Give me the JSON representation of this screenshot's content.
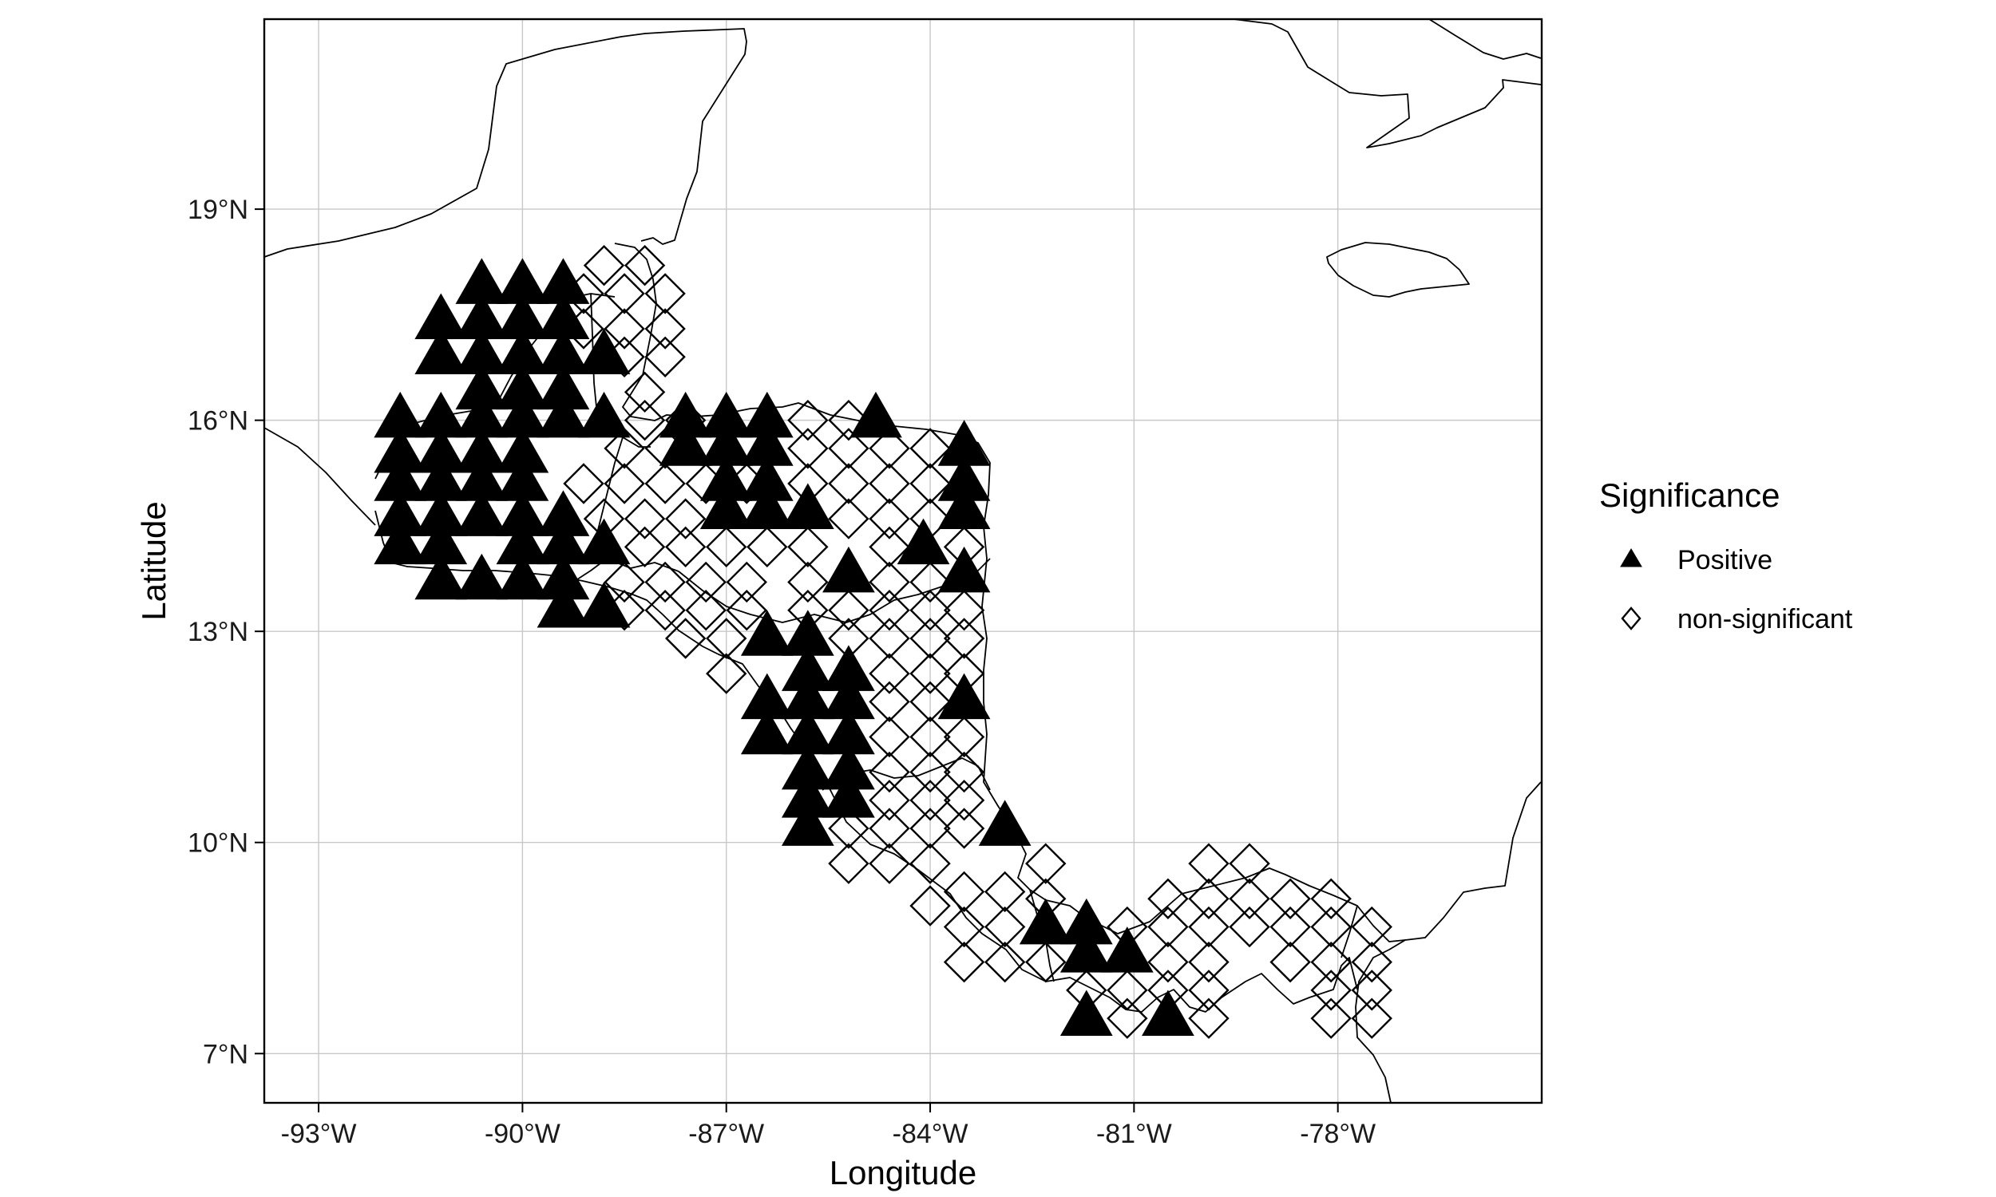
{
  "chart_data": {
    "type": "scatter",
    "title": "",
    "xlabel": "Longitude",
    "ylabel": "Latitude",
    "xlim": [
      -93.8,
      -75.0
    ],
    "ylim": [
      6.3,
      21.7
    ],
    "x_ticks": [
      {
        "value": -93,
        "label": "-93°W"
      },
      {
        "value": -90,
        "label": "-90°W"
      },
      {
        "value": -87,
        "label": "-87°W"
      },
      {
        "value": -84,
        "label": "-84°W"
      },
      {
        "value": -81,
        "label": "-81°W"
      },
      {
        "value": -78,
        "label": "-78°W"
      }
    ],
    "y_ticks": [
      {
        "value": 7,
        "label": "7°N"
      },
      {
        "value": 10,
        "label": "10°N"
      },
      {
        "value": 13,
        "label": "13°N"
      },
      {
        "value": 16,
        "label": "16°N"
      },
      {
        "value": 19,
        "label": "19°N"
      }
    ],
    "grid": true,
    "legend": {
      "title": "Significance",
      "position": "right",
      "entries": [
        {
          "name": "Positive",
          "shape": "triangle-filled"
        },
        {
          "name": "non-significant",
          "shape": "diamond-open"
        }
      ]
    },
    "series": [
      {
        "name": "Positive",
        "shape": "triangle-filled",
        "points": [
          [
            -91.2,
            17.4
          ],
          [
            -91.2,
            16.9
          ],
          [
            -90.6,
            17.9
          ],
          [
            -90.6,
            17.4
          ],
          [
            -90.6,
            16.9
          ],
          [
            -90.6,
            16.4
          ],
          [
            -90.0,
            17.9
          ],
          [
            -90.0,
            17.4
          ],
          [
            -90.0,
            16.9
          ],
          [
            -90.0,
            16.4
          ],
          [
            -89.4,
            17.9
          ],
          [
            -89.4,
            17.4
          ],
          [
            -89.4,
            16.9
          ],
          [
            -89.4,
            16.4
          ],
          [
            -88.8,
            16.9
          ],
          [
            -91.8,
            16.0
          ],
          [
            -91.2,
            16.0
          ],
          [
            -90.6,
            16.0
          ],
          [
            -90.0,
            16.0
          ],
          [
            -89.4,
            16.0
          ],
          [
            -88.8,
            16.0
          ],
          [
            -91.8,
            15.5
          ],
          [
            -91.2,
            15.5
          ],
          [
            -90.6,
            15.5
          ],
          [
            -90.0,
            15.5
          ],
          [
            -91.8,
            15.1
          ],
          [
            -91.2,
            15.1
          ],
          [
            -90.6,
            15.1
          ],
          [
            -90.0,
            15.1
          ],
          [
            -91.8,
            14.6
          ],
          [
            -91.2,
            14.6
          ],
          [
            -90.6,
            14.6
          ],
          [
            -90.0,
            14.6
          ],
          [
            -89.4,
            14.6
          ],
          [
            -91.8,
            14.2
          ],
          [
            -91.2,
            14.2
          ],
          [
            -90.0,
            14.2
          ],
          [
            -89.4,
            14.2
          ],
          [
            -88.8,
            14.2
          ],
          [
            -91.2,
            13.7
          ],
          [
            -90.6,
            13.7
          ],
          [
            -90.0,
            13.7
          ],
          [
            -89.4,
            13.7
          ],
          [
            -89.4,
            13.3
          ],
          [
            -88.8,
            13.3
          ],
          [
            -87.6,
            16.0
          ],
          [
            -87.0,
            16.0
          ],
          [
            -86.4,
            16.0
          ],
          [
            -87.6,
            15.6
          ],
          [
            -87.0,
            15.6
          ],
          [
            -86.4,
            15.6
          ],
          [
            -87.0,
            15.1
          ],
          [
            -86.4,
            15.1
          ],
          [
            -87.0,
            14.7
          ],
          [
            -86.4,
            14.7
          ],
          [
            -85.8,
            14.7
          ],
          [
            -84.8,
            16.0
          ],
          [
            -83.5,
            15.6
          ],
          [
            -83.5,
            15.1
          ],
          [
            -83.5,
            14.7
          ],
          [
            -84.1,
            14.2
          ],
          [
            -85.2,
            13.8
          ],
          [
            -83.5,
            13.8
          ],
          [
            -86.4,
            12.9
          ],
          [
            -85.8,
            12.9
          ],
          [
            -85.8,
            12.4
          ],
          [
            -85.2,
            12.4
          ],
          [
            -86.4,
            12.0
          ],
          [
            -85.8,
            12.0
          ],
          [
            -85.2,
            12.0
          ],
          [
            -83.5,
            12.0
          ],
          [
            -86.4,
            11.5
          ],
          [
            -85.8,
            11.5
          ],
          [
            -85.2,
            11.5
          ],
          [
            -85.8,
            11.0
          ],
          [
            -85.2,
            11.0
          ],
          [
            -85.8,
            10.6
          ],
          [
            -85.2,
            10.6
          ],
          [
            -85.8,
            10.2
          ],
          [
            -82.9,
            10.2
          ],
          [
            -82.3,
            8.8
          ],
          [
            -81.7,
            8.8
          ],
          [
            -81.7,
            8.4
          ],
          [
            -81.1,
            8.4
          ],
          [
            -81.7,
            7.5
          ],
          [
            -80.5,
            7.5
          ]
        ]
      },
      {
        "name": "non-significant",
        "shape": "diamond-open",
        "points": [
          [
            -88.8,
            18.2
          ],
          [
            -88.2,
            18.2
          ],
          [
            -89.1,
            17.8
          ],
          [
            -88.5,
            17.8
          ],
          [
            -87.9,
            17.8
          ],
          [
            -89.1,
            17.3
          ],
          [
            -88.5,
            17.3
          ],
          [
            -87.9,
            17.3
          ],
          [
            -88.5,
            16.9
          ],
          [
            -87.9,
            16.9
          ],
          [
            -88.2,
            16.4
          ],
          [
            -88.2,
            16.0
          ],
          [
            -87.6,
            16.0
          ],
          [
            -85.8,
            16.0
          ],
          [
            -85.2,
            16.0
          ],
          [
            -88.5,
            15.6
          ],
          [
            -87.9,
            15.6
          ],
          [
            -85.8,
            15.6
          ],
          [
            -85.2,
            15.6
          ],
          [
            -84.6,
            15.6
          ],
          [
            -84.0,
            15.6
          ],
          [
            -89.1,
            15.1
          ],
          [
            -88.5,
            15.1
          ],
          [
            -87.9,
            15.1
          ],
          [
            -87.3,
            15.1
          ],
          [
            -86.7,
            15.1
          ],
          [
            -85.8,
            15.1
          ],
          [
            -85.2,
            15.1
          ],
          [
            -84.6,
            15.1
          ],
          [
            -84.0,
            15.1
          ],
          [
            -88.8,
            14.6
          ],
          [
            -88.2,
            14.6
          ],
          [
            -87.6,
            14.6
          ],
          [
            -85.2,
            14.6
          ],
          [
            -84.6,
            14.6
          ],
          [
            -84.0,
            14.6
          ],
          [
            -88.2,
            14.2
          ],
          [
            -87.6,
            14.2
          ],
          [
            -87.0,
            14.2
          ],
          [
            -86.4,
            14.2
          ],
          [
            -85.8,
            14.2
          ],
          [
            -84.6,
            14.2
          ],
          [
            -83.5,
            14.2
          ],
          [
            -88.5,
            13.7
          ],
          [
            -87.9,
            13.7
          ],
          [
            -87.3,
            13.7
          ],
          [
            -86.7,
            13.7
          ],
          [
            -85.8,
            13.7
          ],
          [
            -84.6,
            13.7
          ],
          [
            -84.0,
            13.7
          ],
          [
            -88.5,
            13.3
          ],
          [
            -87.9,
            13.3
          ],
          [
            -87.3,
            13.3
          ],
          [
            -86.7,
            13.3
          ],
          [
            -85.8,
            13.3
          ],
          [
            -85.2,
            13.3
          ],
          [
            -84.6,
            13.3
          ],
          [
            -84.0,
            13.3
          ],
          [
            -83.5,
            13.3
          ],
          [
            -87.6,
            12.9
          ],
          [
            -87.0,
            12.9
          ],
          [
            -85.2,
            12.9
          ],
          [
            -84.6,
            12.9
          ],
          [
            -84.0,
            12.9
          ],
          [
            -83.5,
            12.9
          ],
          [
            -87.0,
            12.4
          ],
          [
            -84.6,
            12.4
          ],
          [
            -84.0,
            12.4
          ],
          [
            -83.5,
            12.4
          ],
          [
            -84.6,
            12.0
          ],
          [
            -84.0,
            12.0
          ],
          [
            -84.6,
            11.5
          ],
          [
            -84.0,
            11.5
          ],
          [
            -83.5,
            11.5
          ],
          [
            -84.6,
            11.0
          ],
          [
            -84.0,
            11.0
          ],
          [
            -83.5,
            11.0
          ],
          [
            -84.6,
            10.6
          ],
          [
            -84.0,
            10.6
          ],
          [
            -83.5,
            10.6
          ],
          [
            -85.2,
            10.2
          ],
          [
            -84.6,
            10.2
          ],
          [
            -84.0,
            10.2
          ],
          [
            -83.5,
            10.2
          ],
          [
            -85.2,
            9.7
          ],
          [
            -84.6,
            9.7
          ],
          [
            -84.0,
            9.7
          ],
          [
            -82.3,
            9.7
          ],
          [
            -82.9,
            9.3
          ],
          [
            -83.5,
            9.3
          ],
          [
            -84.0,
            9.1
          ],
          [
            -83.5,
            8.8
          ],
          [
            -82.9,
            8.8
          ],
          [
            -82.3,
            9.2
          ],
          [
            -83.5,
            8.3
          ],
          [
            -82.9,
            8.3
          ],
          [
            -82.3,
            8.3
          ],
          [
            -81.1,
            8.8
          ],
          [
            -80.5,
            9.2
          ],
          [
            -79.9,
            9.7
          ],
          [
            -79.3,
            9.7
          ],
          [
            -79.9,
            9.2
          ],
          [
            -80.5,
            8.8
          ],
          [
            -79.9,
            8.8
          ],
          [
            -79.3,
            9.2
          ],
          [
            -79.3,
            8.8
          ],
          [
            -78.7,
            9.2
          ],
          [
            -78.1,
            9.2
          ],
          [
            -78.7,
            8.8
          ],
          [
            -78.1,
            8.8
          ],
          [
            -77.5,
            8.8
          ],
          [
            -80.5,
            8.3
          ],
          [
            -79.9,
            8.3
          ],
          [
            -78.7,
            8.3
          ],
          [
            -78.1,
            8.3
          ],
          [
            -77.5,
            8.3
          ],
          [
            -81.7,
            7.9
          ],
          [
            -81.1,
            7.9
          ],
          [
            -80.5,
            7.9
          ],
          [
            -79.9,
            7.9
          ],
          [
            -78.1,
            7.9
          ],
          [
            -77.5,
            7.9
          ],
          [
            -81.1,
            7.5
          ],
          [
            -79.9,
            7.5
          ],
          [
            -78.1,
            7.5
          ],
          [
            -77.5,
            7.5
          ]
        ]
      }
    ]
  }
}
